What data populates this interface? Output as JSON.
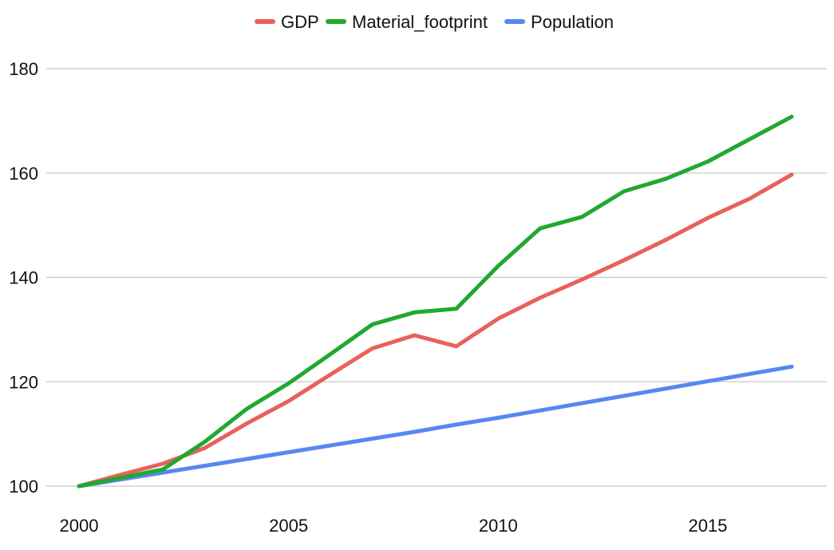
{
  "chart_data": {
    "type": "line",
    "title": "",
    "xlabel": "",
    "ylabel": "",
    "x": [
      2000,
      2001,
      2002,
      2003,
      2004,
      2005,
      2006,
      2007,
      2008,
      2009,
      2010,
      2011,
      2012,
      2013,
      2014,
      2015,
      2016,
      2017
    ],
    "xlim": [
      2000,
      2017
    ],
    "ylim": [
      100,
      180
    ],
    "xticks": [
      2000,
      2005,
      2010,
      2015
    ],
    "yticks": [
      100,
      120,
      140,
      160,
      180
    ],
    "grid": "horizontal",
    "legend_position": "top",
    "series": [
      {
        "name": "GDP",
        "color": "#e8615c",
        "values": [
          100,
          102.2,
          104.3,
          107.3,
          112.0,
          116.3,
          121.4,
          126.4,
          128.9,
          126.8,
          132.1,
          136.1,
          139.6,
          143.3,
          147.2,
          151.4,
          155.1,
          159.7
        ]
      },
      {
        "name": "Material_footprint",
        "color": "#21a830",
        "values": [
          100,
          101.6,
          103.2,
          108.5,
          114.8,
          119.7,
          125.3,
          131.0,
          133.3,
          134.0,
          142.2,
          149.4,
          151.6,
          156.5,
          158.9,
          162.2,
          166.5,
          170.8
        ]
      },
      {
        "name": "Population",
        "color": "#5887f0",
        "values": [
          100,
          101.3,
          102.6,
          103.9,
          105.2,
          106.5,
          107.8,
          109.1,
          110.4,
          111.8,
          113.1,
          114.5,
          115.9,
          117.3,
          118.7,
          120.1,
          121.5,
          122.9
        ]
      }
    ]
  }
}
